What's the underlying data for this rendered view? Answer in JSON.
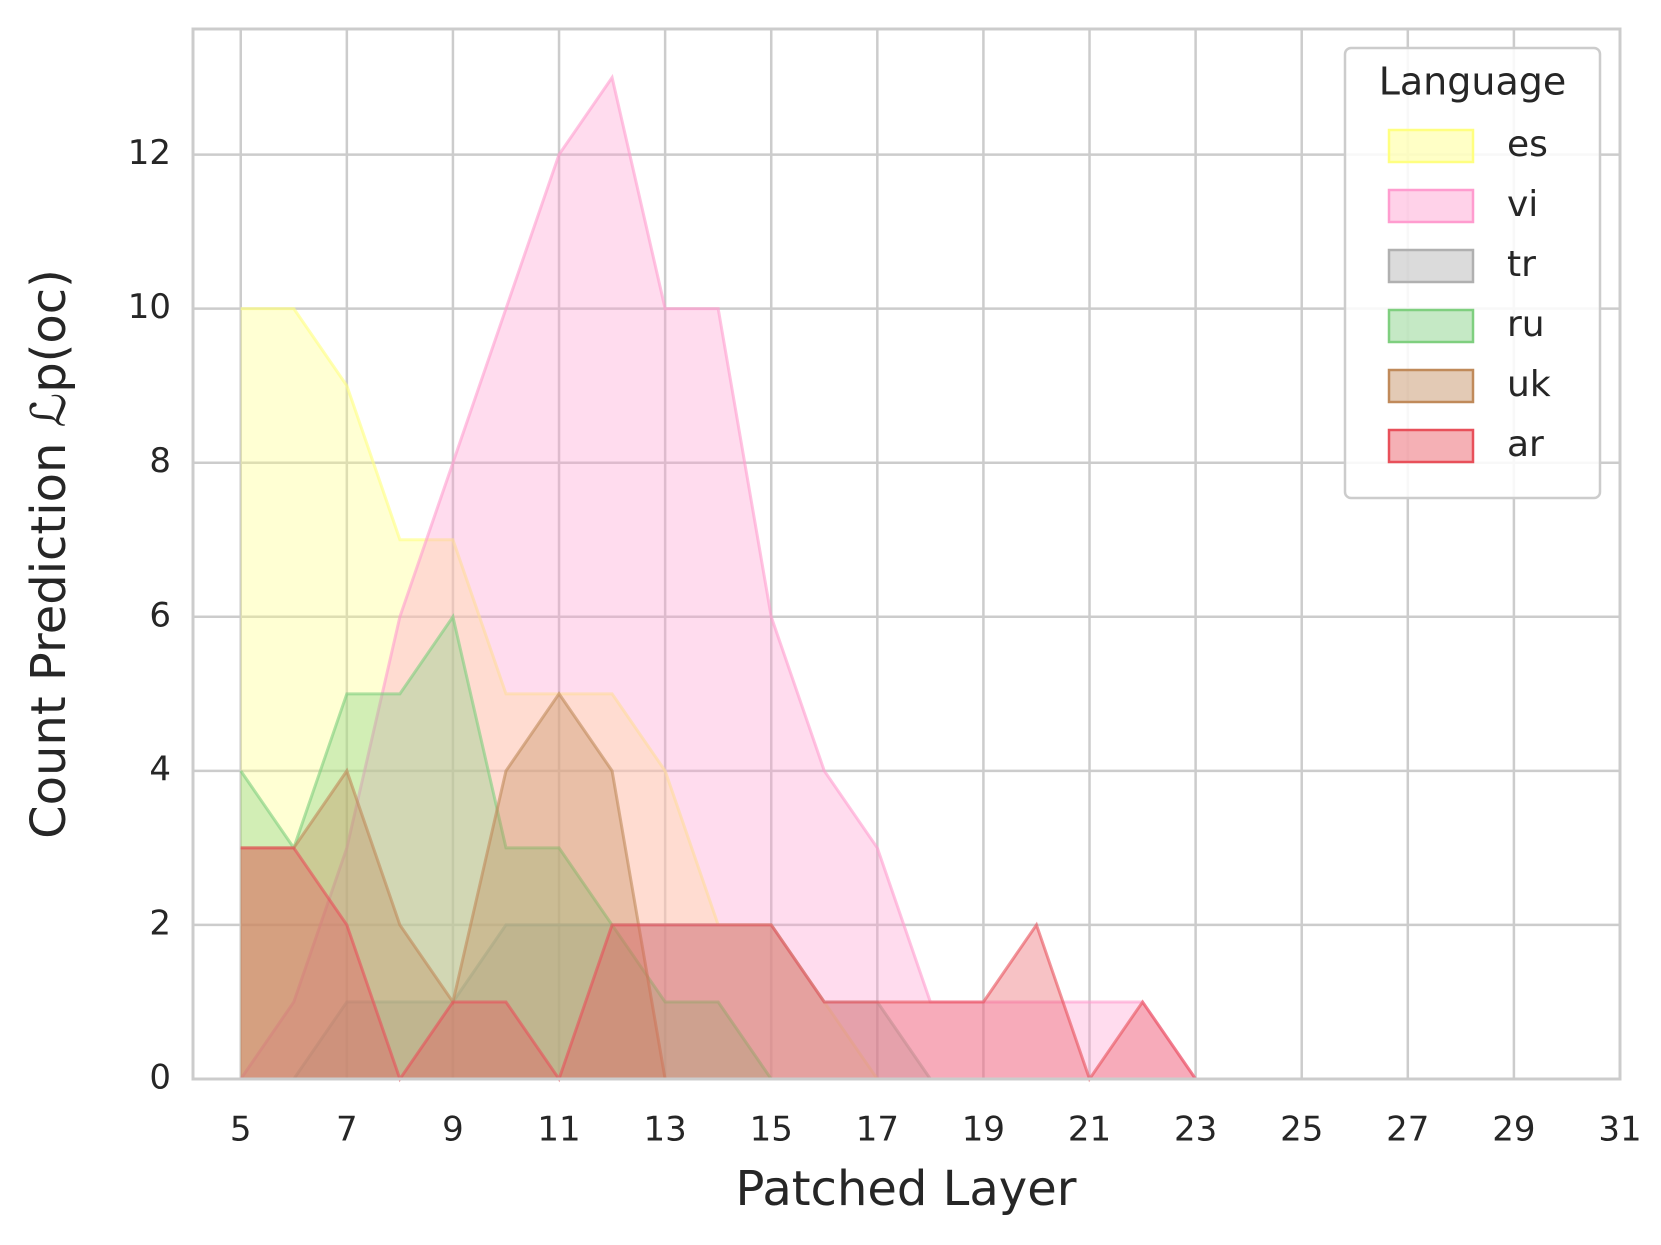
{
  "chart_data": {
    "type": "area",
    "x_label": "Patched Layer",
    "y_label": "Count Prediction ℒp(oc)",
    "legend_title": "Language",
    "legend_position": "upper right",
    "grid": true,
    "x": [
      5,
      6,
      7,
      8,
      9,
      10,
      11,
      12,
      13,
      14,
      15,
      16,
      17,
      18,
      19,
      20,
      21,
      22,
      23
    ],
    "series": [
      {
        "name": "es",
        "color": "#ffff80",
        "values": [
          10,
          10,
          9,
          7,
          7,
          5,
          5,
          5,
          4,
          2,
          2,
          1,
          0,
          null,
          null,
          null,
          null,
          null,
          null
        ]
      },
      {
        "name": "vi",
        "color": "#ff9ccf",
        "values": [
          0,
          1,
          3,
          6,
          8,
          10,
          12,
          13,
          10,
          10,
          6,
          4,
          3,
          1,
          1,
          1,
          1,
          1,
          0
        ]
      },
      {
        "name": "tr",
        "color": "#b0b0b0",
        "values": [
          0,
          0,
          1,
          1,
          1,
          2,
          2,
          2,
          2,
          2,
          2,
          1,
          1,
          0,
          null,
          null,
          null,
          null,
          null
        ]
      },
      {
        "name": "ru",
        "color": "#7fcf7f",
        "values": [
          4,
          3,
          5,
          5,
          6,
          3,
          3,
          2,
          1,
          1,
          0,
          null,
          null,
          null,
          null,
          null,
          null,
          null,
          null
        ]
      },
      {
        "name": "uk",
        "color": "#c08a5a",
        "values": [
          3,
          3,
          4,
          2,
          1,
          4,
          5,
          4,
          0,
          null,
          null,
          null,
          null,
          null,
          null,
          null,
          null,
          null,
          null
        ]
      },
      {
        "name": "ar",
        "color": "#e8505a",
        "values": [
          3,
          3,
          2,
          0,
          1,
          1,
          0,
          2,
          2,
          2,
          2,
          1,
          1,
          1,
          1,
          2,
          0,
          1,
          0
        ]
      }
    ],
    "xlim": [
      4.1,
      31
    ],
    "ylim": [
      0,
      13.63
    ],
    "xticks": [
      5,
      7,
      9,
      11,
      13,
      15,
      17,
      19,
      21,
      23,
      25,
      27,
      29,
      31
    ],
    "yticks": [
      0,
      2,
      4,
      6,
      8,
      10,
      12
    ]
  }
}
